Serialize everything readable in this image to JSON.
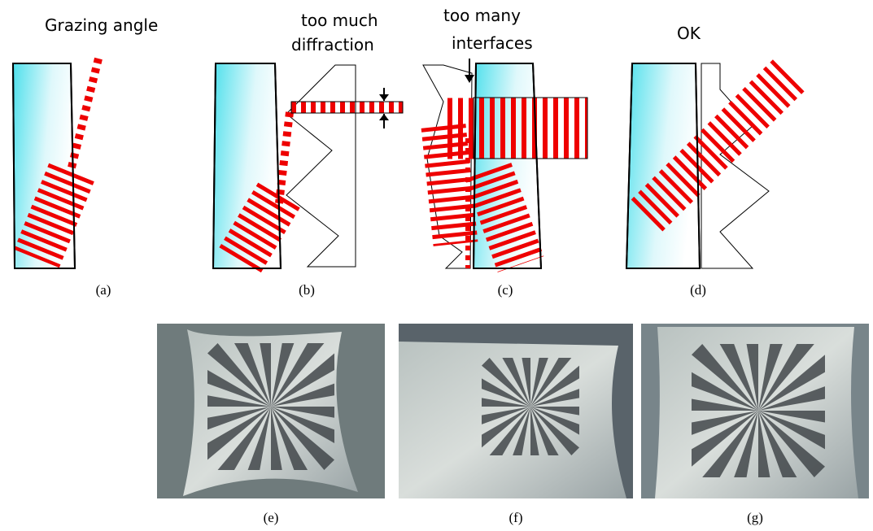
{
  "panels": [
    {
      "caption": "(a)",
      "label": [
        "Grazing angle"
      ]
    },
    {
      "caption": "(b)",
      "label": [
        "too much",
        "diffraction"
      ]
    },
    {
      "caption": "(c)",
      "label": [
        "too many",
        "interfaces"
      ]
    },
    {
      "caption": "(d)",
      "label": [
        "OK"
      ]
    },
    {
      "caption": "(e)"
    },
    {
      "caption": "(f)"
    },
    {
      "caption": "(g)"
    }
  ]
}
